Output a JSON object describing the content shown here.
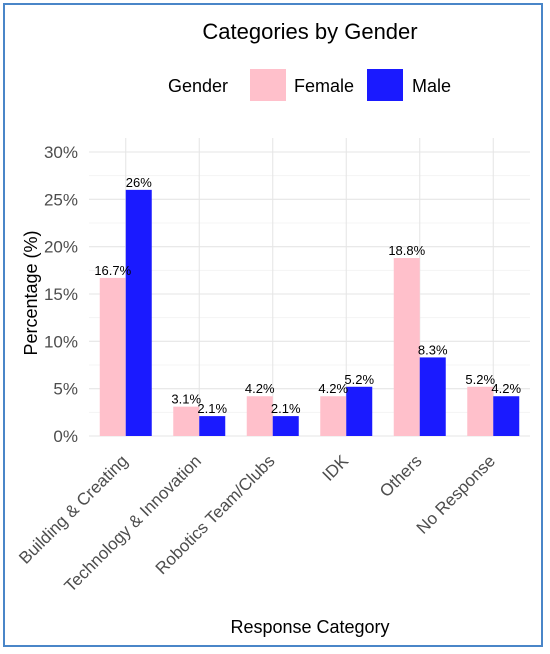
{
  "chart_data": {
    "type": "bar",
    "title": "Categories by Gender",
    "legend_title": "Gender",
    "legend_position": "top",
    "xlabel": "Response Category",
    "ylabel": "Percentage (%)",
    "ylim": [
      0,
      30
    ],
    "y_ticks": [
      0,
      5,
      10,
      15,
      20,
      25,
      30
    ],
    "y_tick_labels": [
      "0%",
      "5%",
      "10%",
      "15%",
      "20%",
      "25%",
      "30%"
    ],
    "grid": true,
    "categories": [
      "Building & Creating",
      "Technology & Innovation",
      "Robotics Team/Clubs",
      "IDK",
      "Others",
      "No Response"
    ],
    "series": [
      {
        "name": "Female",
        "color": "#ffc0cb",
        "values": [
          16.7,
          3.1,
          4.2,
          4.2,
          18.8,
          5.2
        ],
        "labels": [
          "16.7%",
          "3.1%",
          "4.2%",
          "4.2%",
          "18.8%",
          "5.2%"
        ]
      },
      {
        "name": "Male",
        "color": "#1a1aff",
        "values": [
          26,
          2.1,
          2.1,
          5.2,
          8.3,
          4.2
        ],
        "labels": [
          "26%",
          "2.1%",
          "2.1%",
          "5.2%",
          "8.3%",
          "4.2%"
        ]
      }
    ]
  }
}
